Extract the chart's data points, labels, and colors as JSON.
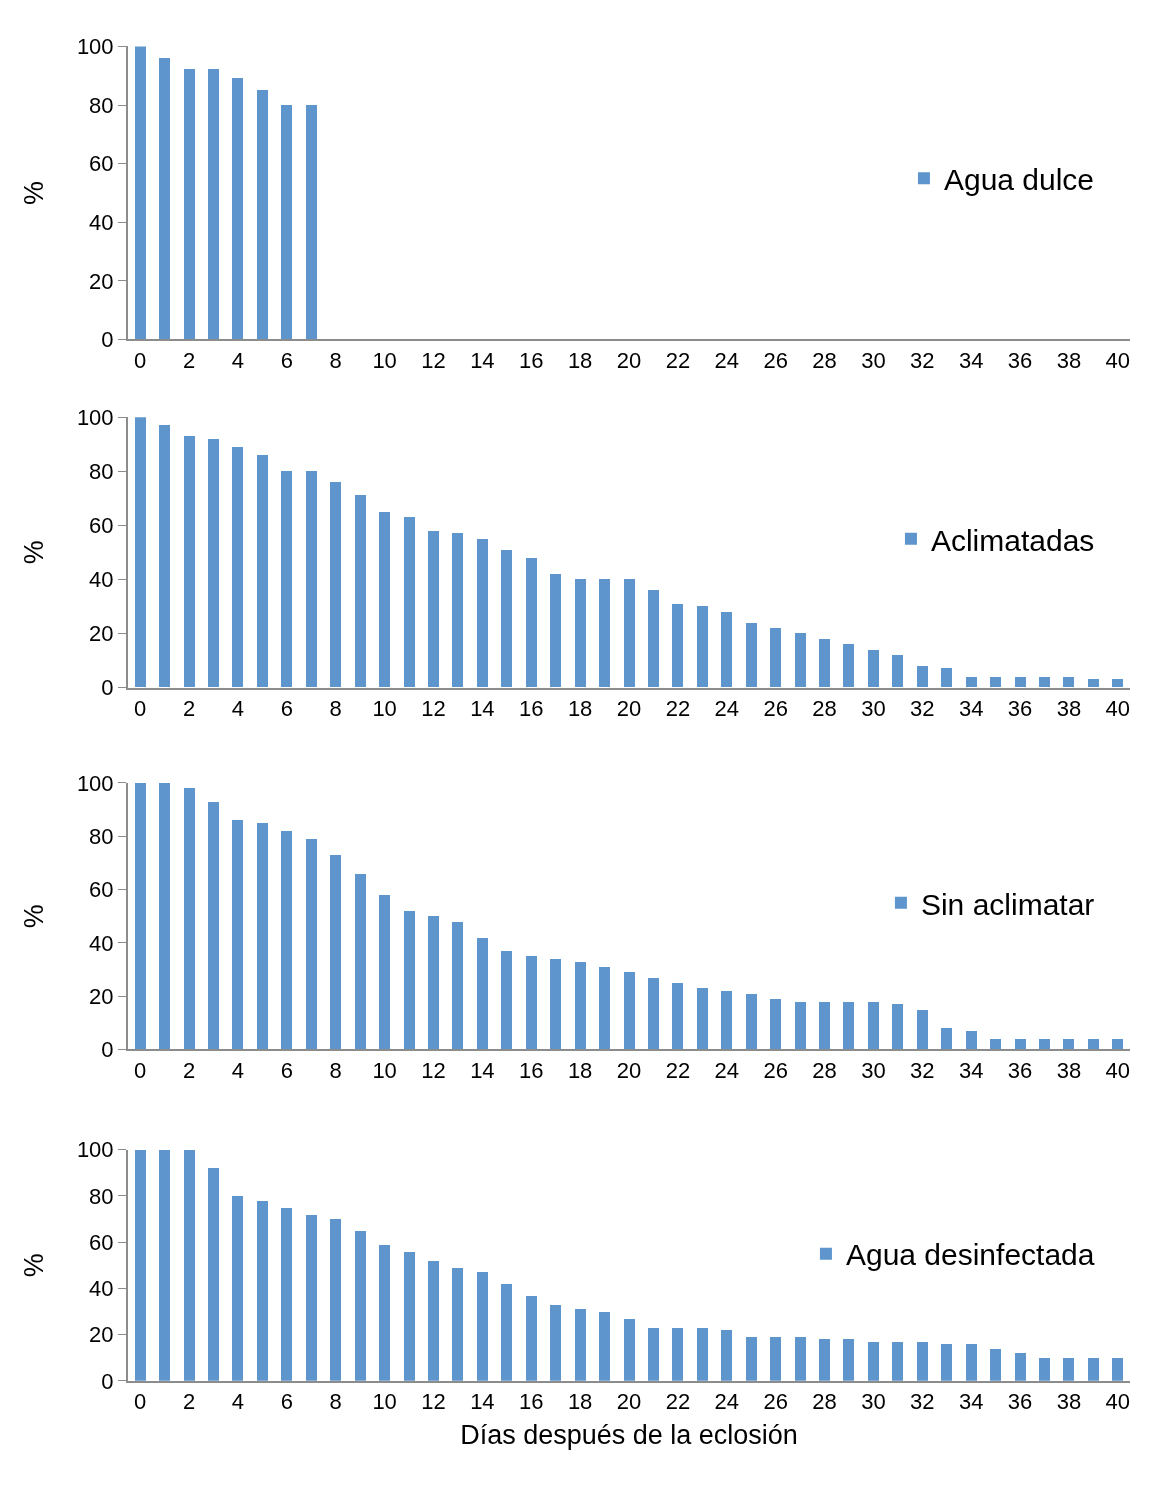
{
  "chart_data": [
    {
      "type": "bar",
      "ylabel": "%",
      "x": [
        0,
        1,
        2,
        3,
        4,
        5,
        6,
        7
      ],
      "xlim": [
        -0.5,
        40.5
      ],
      "xticks": [
        0,
        2,
        4,
        6,
        8,
        10,
        12,
        14,
        16,
        18,
        20,
        22,
        24,
        26,
        28,
        30,
        32,
        34,
        36,
        38,
        40
      ],
      "ylim": [
        0,
        100
      ],
      "yticks": [
        0,
        20,
        40,
        60,
        80,
        100
      ],
      "legend": "right",
      "grid": false,
      "series": [
        {
          "name": "Agua dulce",
          "color": "#5e95cc",
          "values": [
            100,
            96,
            92,
            92,
            89,
            85,
            80,
            80
          ]
        }
      ]
    },
    {
      "type": "bar",
      "ylabel": "%",
      "x": [
        0,
        1,
        2,
        3,
        4,
        5,
        6,
        7,
        8,
        9,
        10,
        11,
        12,
        13,
        14,
        15,
        16,
        17,
        18,
        19,
        20,
        21,
        22,
        23,
        24,
        25,
        26,
        27,
        28,
        29,
        30,
        31,
        32,
        33,
        34,
        35,
        36,
        37,
        38,
        39,
        40
      ],
      "xlim": [
        -0.5,
        40.5
      ],
      "xticks": [
        0,
        2,
        4,
        6,
        8,
        10,
        12,
        14,
        16,
        18,
        20,
        22,
        24,
        26,
        28,
        30,
        32,
        34,
        36,
        38,
        40
      ],
      "ylim": [
        0,
        100
      ],
      "yticks": [
        0,
        20,
        40,
        60,
        80,
        100
      ],
      "legend": "right",
      "grid": false,
      "series": [
        {
          "name": "Aclimatadas",
          "color": "#5e95cc",
          "values": [
            100,
            97,
            93,
            92,
            89,
            86,
            80,
            80,
            76,
            71,
            65,
            63,
            58,
            57,
            55,
            51,
            48,
            42,
            40,
            40,
            40,
            36,
            31,
            30,
            28,
            24,
            22,
            20,
            18,
            16,
            14,
            12,
            8,
            7,
            4,
            4,
            4,
            4,
            4,
            3,
            3
          ]
        }
      ]
    },
    {
      "type": "bar",
      "ylabel": "%",
      "x": [
        0,
        1,
        2,
        3,
        4,
        5,
        6,
        7,
        8,
        9,
        10,
        11,
        12,
        13,
        14,
        15,
        16,
        17,
        18,
        19,
        20,
        21,
        22,
        23,
        24,
        25,
        26,
        27,
        28,
        29,
        30,
        31,
        32,
        33,
        34,
        35,
        36,
        37,
        38,
        39,
        40
      ],
      "xlim": [
        -0.5,
        40.5
      ],
      "xticks": [
        0,
        2,
        4,
        6,
        8,
        10,
        12,
        14,
        16,
        18,
        20,
        22,
        24,
        26,
        28,
        30,
        32,
        34,
        36,
        38,
        40
      ],
      "ylim": [
        0,
        100
      ],
      "yticks": [
        0,
        20,
        40,
        60,
        80,
        100
      ],
      "legend": "right",
      "grid": false,
      "series": [
        {
          "name": "Sin aclimatar",
          "color": "#5e95cc",
          "values": [
            100,
            100,
            98,
            93,
            86,
            85,
            82,
            79,
            73,
            66,
            58,
            52,
            50,
            48,
            42,
            37,
            35,
            34,
            33,
            31,
            29,
            27,
            25,
            23,
            22,
            21,
            19,
            18,
            18,
            18,
            18,
            17,
            15,
            8,
            7,
            4,
            4,
            4,
            4,
            4,
            4
          ]
        }
      ]
    },
    {
      "type": "bar",
      "ylabel": "%",
      "xlabel": "Días después de la eclosión",
      "x": [
        0,
        1,
        2,
        3,
        4,
        5,
        6,
        7,
        8,
        9,
        10,
        11,
        12,
        13,
        14,
        15,
        16,
        17,
        18,
        19,
        20,
        21,
        22,
        23,
        24,
        25,
        26,
        27,
        28,
        29,
        30,
        31,
        32,
        33,
        34,
        35,
        36,
        37,
        38,
        39,
        40
      ],
      "xlim": [
        -0.5,
        40.5
      ],
      "xticks": [
        0,
        2,
        4,
        6,
        8,
        10,
        12,
        14,
        16,
        18,
        20,
        22,
        24,
        26,
        28,
        30,
        32,
        34,
        36,
        38,
        40
      ],
      "ylim": [
        0,
        100
      ],
      "yticks": [
        0,
        20,
        40,
        60,
        80,
        100
      ],
      "legend": "right",
      "grid": false,
      "series": [
        {
          "name": "Agua desinfectada",
          "color": "#5e95cc",
          "values": [
            100,
            100,
            100,
            92,
            80,
            78,
            75,
            72,
            70,
            65,
            59,
            56,
            52,
            49,
            47,
            42,
            37,
            33,
            31,
            30,
            27,
            23,
            23,
            23,
            22,
            19,
            19,
            19,
            18,
            18,
            17,
            17,
            17,
            16,
            16,
            14,
            12,
            10,
            10,
            10,
            10
          ]
        }
      ]
    }
  ]
}
